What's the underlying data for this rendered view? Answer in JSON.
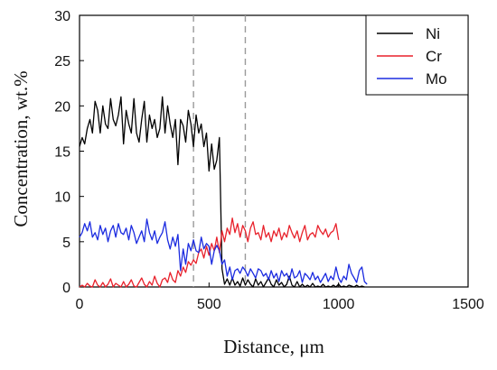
{
  "chart_data": {
    "type": "line",
    "title": "",
    "xlabel": "Distance, μm",
    "ylabel": "Concentration, wt.%",
    "xlim": [
      0,
      1500
    ],
    "ylim": [
      0,
      30
    ],
    "x_ticks": [
      "0",
      "500",
      "1000",
      "1500"
    ],
    "y_ticks": [
      "0",
      "5",
      "10",
      "15",
      "20",
      "25",
      "30"
    ],
    "grid": false,
    "legend_position": "top-right",
    "reference_lines_x": [
      440,
      640
    ],
    "series": [
      {
        "name": "Ni",
        "color": "#000000",
        "x": [
          0,
          10,
          20,
          30,
          40,
          50,
          60,
          70,
          80,
          90,
          100,
          110,
          120,
          130,
          140,
          150,
          160,
          170,
          180,
          190,
          200,
          210,
          220,
          230,
          240,
          250,
          260,
          270,
          280,
          290,
          300,
          310,
          320,
          330,
          340,
          350,
          360,
          370,
          380,
          390,
          400,
          410,
          420,
          430,
          440,
          450,
          460,
          470,
          480,
          490,
          500,
          510,
          520,
          530,
          540,
          550,
          560,
          570,
          580,
          590,
          600,
          610,
          620,
          630,
          640,
          650,
          660,
          670,
          680,
          690,
          700,
          710,
          720,
          730,
          740,
          750,
          760,
          770,
          780,
          790,
          800,
          810,
          820,
          830,
          840,
          850,
          860,
          870,
          880,
          890,
          900,
          910,
          920,
          930,
          940,
          950,
          960,
          970,
          980,
          990,
          1000,
          1010,
          1020,
          1030,
          1040,
          1050,
          1060,
          1070,
          1080,
          1090,
          1100
        ],
        "values": [
          15.5,
          16.5,
          15.8,
          17.5,
          18.5,
          17.0,
          20.5,
          19.5,
          17.0,
          20.0,
          18.0,
          17.5,
          20.8,
          18.5,
          17.8,
          19.0,
          21.0,
          15.8,
          19.5,
          18.0,
          17.0,
          20.8,
          17.0,
          16.0,
          18.5,
          20.5,
          16.0,
          19.0,
          17.5,
          18.5,
          16.5,
          17.5,
          21.0,
          17.0,
          20.0,
          18.0,
          16.5,
          18.5,
          13.5,
          18.5,
          17.8,
          16.0,
          19.5,
          18.0,
          15.5,
          19.0,
          17.0,
          18.0,
          15.5,
          17.0,
          12.8,
          15.8,
          13.0,
          14.0,
          16.5,
          2.0,
          0.3,
          0.9,
          0.2,
          1.0,
          0.2,
          0.6,
          0.1,
          1.0,
          0.2,
          0.8,
          0.3,
          0.0,
          0.9,
          0.2,
          0.6,
          0.0,
          0.5,
          1.0,
          0.3,
          0.0,
          0.8,
          0.2,
          0.5,
          0.0,
          0.3,
          1.2,
          0.2,
          0.0,
          0.6,
          0.0,
          0.3,
          0.0,
          0.2,
          0.0,
          0.4,
          0.0,
          0.1,
          0.0,
          0.3,
          0.0,
          0.1,
          0.0,
          0.2,
          0.0,
          0.3,
          0.0,
          0.1,
          0.0,
          0.2,
          0.1,
          0.0,
          0.2,
          0.0,
          0.1,
          0.0
        ]
      },
      {
        "name": "Cr",
        "color": "#e8212b",
        "x": [
          0,
          10,
          20,
          30,
          40,
          50,
          60,
          70,
          80,
          90,
          100,
          110,
          120,
          130,
          140,
          150,
          160,
          170,
          180,
          190,
          200,
          210,
          220,
          230,
          240,
          250,
          260,
          270,
          280,
          290,
          300,
          310,
          320,
          330,
          340,
          350,
          360,
          370,
          380,
          390,
          400,
          410,
          420,
          430,
          440,
          450,
          460,
          470,
          480,
          490,
          500,
          510,
          520,
          530,
          540,
          550,
          560,
          570,
          580,
          590,
          600,
          610,
          620,
          630,
          640,
          650,
          660,
          670,
          680,
          690,
          700,
          710,
          720,
          730,
          740,
          750,
          760,
          770,
          780,
          790,
          800,
          810,
          820,
          830,
          840,
          850,
          860,
          870,
          880,
          890,
          900,
          910,
          920,
          930,
          940,
          950,
          960,
          970,
          980,
          990,
          1000
        ],
        "values": [
          0.0,
          0.2,
          0.0,
          0.4,
          0.1,
          0.0,
          0.8,
          0.2,
          0.0,
          0.5,
          0.0,
          0.3,
          0.9,
          0.0,
          0.4,
          0.2,
          0.0,
          0.6,
          0.0,
          0.3,
          0.8,
          0.1,
          0.0,
          0.5,
          1.0,
          0.3,
          0.0,
          0.6,
          0.2,
          1.2,
          0.4,
          0.0,
          0.8,
          1.0,
          0.5,
          1.6,
          0.8,
          0.5,
          1.8,
          1.2,
          2.2,
          1.6,
          2.8,
          2.4,
          3.0,
          2.6,
          3.8,
          4.2,
          3.2,
          4.5,
          3.5,
          4.8,
          4.0,
          5.5,
          3.8,
          6.2,
          5.0,
          6.5,
          5.8,
          7.6,
          6.0,
          7.0,
          5.5,
          6.8,
          6.2,
          5.0,
          6.5,
          7.2,
          5.8,
          6.0,
          5.2,
          6.8,
          5.5,
          6.0,
          5.0,
          6.2,
          5.6,
          6.5,
          5.2,
          6.0,
          5.5,
          6.8,
          6.0,
          5.4,
          6.2,
          5.0,
          6.0,
          6.8,
          5.2,
          5.8,
          6.0,
          5.5,
          6.8,
          6.2,
          5.8,
          6.4,
          5.5,
          6.0,
          6.2,
          7.0,
          5.2
        ]
      },
      {
        "name": "Mo",
        "color": "#1b2be0",
        "x": [
          0,
          10,
          20,
          30,
          40,
          50,
          60,
          70,
          80,
          90,
          100,
          110,
          120,
          130,
          140,
          150,
          160,
          170,
          180,
          190,
          200,
          210,
          220,
          230,
          240,
          250,
          260,
          270,
          280,
          290,
          300,
          310,
          320,
          330,
          340,
          350,
          360,
          370,
          380,
          390,
          400,
          410,
          420,
          430,
          440,
          450,
          460,
          470,
          480,
          490,
          500,
          510,
          520,
          530,
          540,
          550,
          560,
          570,
          580,
          590,
          600,
          610,
          620,
          630,
          640,
          650,
          660,
          670,
          680,
          690,
          700,
          710,
          720,
          730,
          740,
          750,
          760,
          770,
          780,
          790,
          800,
          810,
          820,
          830,
          840,
          850,
          860,
          870,
          880,
          890,
          900,
          910,
          920,
          930,
          940,
          950,
          960,
          970,
          980,
          990,
          1000,
          1010,
          1020,
          1030,
          1040,
          1050,
          1060,
          1070,
          1080,
          1090,
          1100,
          1110
        ],
        "values": [
          5.5,
          6.0,
          7.0,
          6.2,
          7.2,
          5.5,
          6.0,
          5.2,
          6.8,
          5.8,
          6.5,
          5.0,
          6.2,
          6.8,
          5.5,
          7.0,
          6.0,
          5.8,
          6.5,
          5.2,
          6.8,
          6.0,
          4.8,
          5.5,
          6.2,
          5.0,
          7.5,
          6.0,
          5.2,
          6.2,
          4.8,
          5.5,
          6.0,
          7.2,
          5.2,
          4.2,
          5.5,
          4.5,
          5.8,
          1.8,
          4.2,
          2.5,
          4.8,
          4.0,
          5.2,
          4.0,
          3.8,
          5.5,
          4.2,
          4.8,
          4.5,
          2.5,
          4.0,
          4.6,
          4.0,
          2.5,
          3.0,
          1.2,
          2.2,
          0.8,
          1.8,
          2.0,
          1.5,
          2.2,
          1.8,
          1.2,
          2.0,
          1.5,
          1.0,
          2.0,
          1.8,
          1.2,
          1.5,
          0.8,
          1.8,
          1.0,
          1.5,
          0.6,
          1.8,
          1.2,
          1.5,
          0.8,
          2.0,
          1.0,
          1.2,
          1.8,
          0.5,
          1.5,
          1.2,
          0.8,
          1.6,
          0.8,
          1.2,
          0.5,
          1.0,
          1.5,
          0.6,
          1.2,
          0.8,
          2.2,
          1.0,
          0.5,
          1.2,
          0.8,
          2.5,
          1.5,
          1.0,
          0.5,
          1.8,
          2.2,
          0.6,
          0.3
        ]
      }
    ]
  }
}
